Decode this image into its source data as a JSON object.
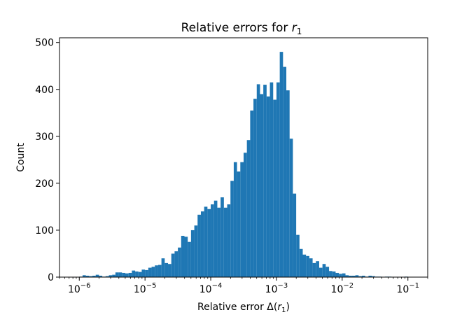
{
  "chart_data": {
    "type": "bar",
    "title": "Relative errors for r₁",
    "title_text": "Relative errors for ",
    "title_math": "r",
    "title_sub": "1",
    "xlabel_text": "Relative error Δ(",
    "xlabel_math": "r",
    "xlabel_sub": "1",
    "xlabel_close": ")",
    "ylabel": "Count",
    "x_scale": "log",
    "xlim": [
      5e-07,
      0.2
    ],
    "ylim": [
      0,
      510
    ],
    "bar_color": "#1f77b4",
    "grid": false,
    "legend": "none",
    "yticks": [
      0,
      100,
      200,
      300,
      400,
      500
    ],
    "ytick_labels": [
      "0",
      "100",
      "200",
      "300",
      "400",
      "500"
    ],
    "xtick_base": "10",
    "xtick_exponents": [
      "−6",
      "−5",
      "−4",
      "−3",
      "−2",
      "−1"
    ],
    "xticks": [
      1e-06,
      1e-05,
      0.0001,
      0.001,
      0.01,
      0.1
    ],
    "bin_edges_log10": {
      "start": -6.0,
      "end": -1.0,
      "count": 100
    },
    "values": [
      1,
      4,
      3,
      2,
      3,
      5,
      3,
      1,
      2,
      4,
      5,
      10,
      10,
      9,
      8,
      9,
      14,
      12,
      11,
      16,
      15,
      20,
      22,
      25,
      26,
      40,
      30,
      28,
      50,
      55,
      63,
      88,
      86,
      75,
      100,
      110,
      133,
      140,
      150,
      145,
      155,
      163,
      148,
      170,
      148,
      155,
      205,
      245,
      225,
      245,
      265,
      292,
      355,
      380,
      411,
      390,
      410,
      385,
      415,
      378,
      415,
      480,
      448,
      398,
      295,
      178,
      90,
      60,
      48,
      45,
      40,
      30,
      34,
      20,
      28,
      22,
      13,
      12,
      9,
      7,
      8,
      4,
      3,
      3,
      4,
      2,
      3,
      1,
      3,
      2,
      1,
      1,
      0,
      1,
      1,
      0,
      0,
      0,
      0,
      1
    ]
  }
}
